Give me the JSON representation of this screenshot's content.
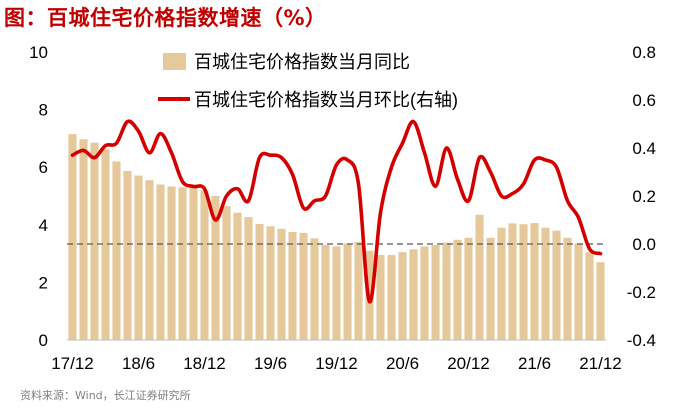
{
  "title": "图：百城住宅价格指数增速（%）",
  "source": "资料来源：Wind，长江证券研究所",
  "chart_data": {
    "type": "bar+line",
    "title": "图：百城住宅价格指数增速（%）",
    "x_tick_labels": [
      "17/12",
      "18/6",
      "18/12",
      "19/6",
      "19/12",
      "20/6",
      "20/12",
      "21/6",
      "21/12"
    ],
    "x": [
      "17/12",
      "18/1",
      "18/2",
      "18/3",
      "18/4",
      "18/5",
      "18/6",
      "18/7",
      "18/8",
      "18/9",
      "18/10",
      "18/11",
      "18/12",
      "19/1",
      "19/2",
      "19/3",
      "19/4",
      "19/5",
      "19/6",
      "19/7",
      "19/8",
      "19/9",
      "19/10",
      "19/11",
      "19/12",
      "20/1",
      "20/2",
      "20/3",
      "20/4",
      "20/5",
      "20/6",
      "20/7",
      "20/8",
      "20/9",
      "20/10",
      "20/11",
      "20/12",
      "21/1",
      "21/2",
      "21/3",
      "21/4",
      "21/5",
      "21/6",
      "21/7",
      "21/8",
      "21/9",
      "21/10",
      "21/11",
      "21/12"
    ],
    "left_axis": {
      "ylim": [
        0,
        10
      ],
      "ticks": [
        "0",
        "2",
        "4",
        "6",
        "8",
        "10"
      ]
    },
    "right_axis": {
      "ylim": [
        -0.4,
        0.8
      ],
      "ticks": [
        "-0.4",
        "-0.2",
        "0.0",
        "0.2",
        "0.4",
        "0.6",
        "0.8"
      ]
    },
    "reference_line": {
      "axis": "right",
      "value": 0.0,
      "style": "dashed"
    },
    "legend_position": "top-center",
    "series": [
      {
        "name": "百城住宅价格指数当月同比",
        "type": "bar",
        "axis": "left",
        "color": "#e6c99a",
        "values": [
          7.15,
          6.97,
          6.85,
          6.62,
          6.2,
          5.87,
          5.71,
          5.55,
          5.4,
          5.33,
          5.3,
          5.35,
          5.2,
          5.0,
          4.65,
          4.42,
          4.27,
          4.03,
          3.95,
          3.86,
          3.75,
          3.72,
          3.53,
          3.3,
          3.25,
          3.35,
          3.4,
          3.1,
          2.95,
          2.95,
          3.05,
          3.15,
          3.25,
          3.3,
          3.38,
          3.48,
          3.55,
          4.35,
          3.55,
          3.9,
          4.05,
          4.02,
          4.06,
          3.9,
          3.8,
          3.55,
          3.35,
          3.05,
          2.7
        ]
      },
      {
        "name": "百城住宅价格指数当月环比(右轴)",
        "type": "line",
        "axis": "right",
        "color": "#d40000",
        "values": [
          0.37,
          0.39,
          0.36,
          0.41,
          0.42,
          0.51,
          0.47,
          0.38,
          0.46,
          0.38,
          0.26,
          0.24,
          0.23,
          0.1,
          0.2,
          0.23,
          0.18,
          0.36,
          0.37,
          0.36,
          0.29,
          0.15,
          0.18,
          0.2,
          0.33,
          0.35,
          0.25,
          -0.24,
          0.13,
          0.32,
          0.42,
          0.51,
          0.38,
          0.24,
          0.4,
          0.27,
          0.18,
          0.36,
          0.3,
          0.2,
          0.21,
          0.25,
          0.35,
          0.35,
          0.32,
          0.18,
          0.11,
          -0.02,
          -0.04
        ]
      }
    ]
  }
}
